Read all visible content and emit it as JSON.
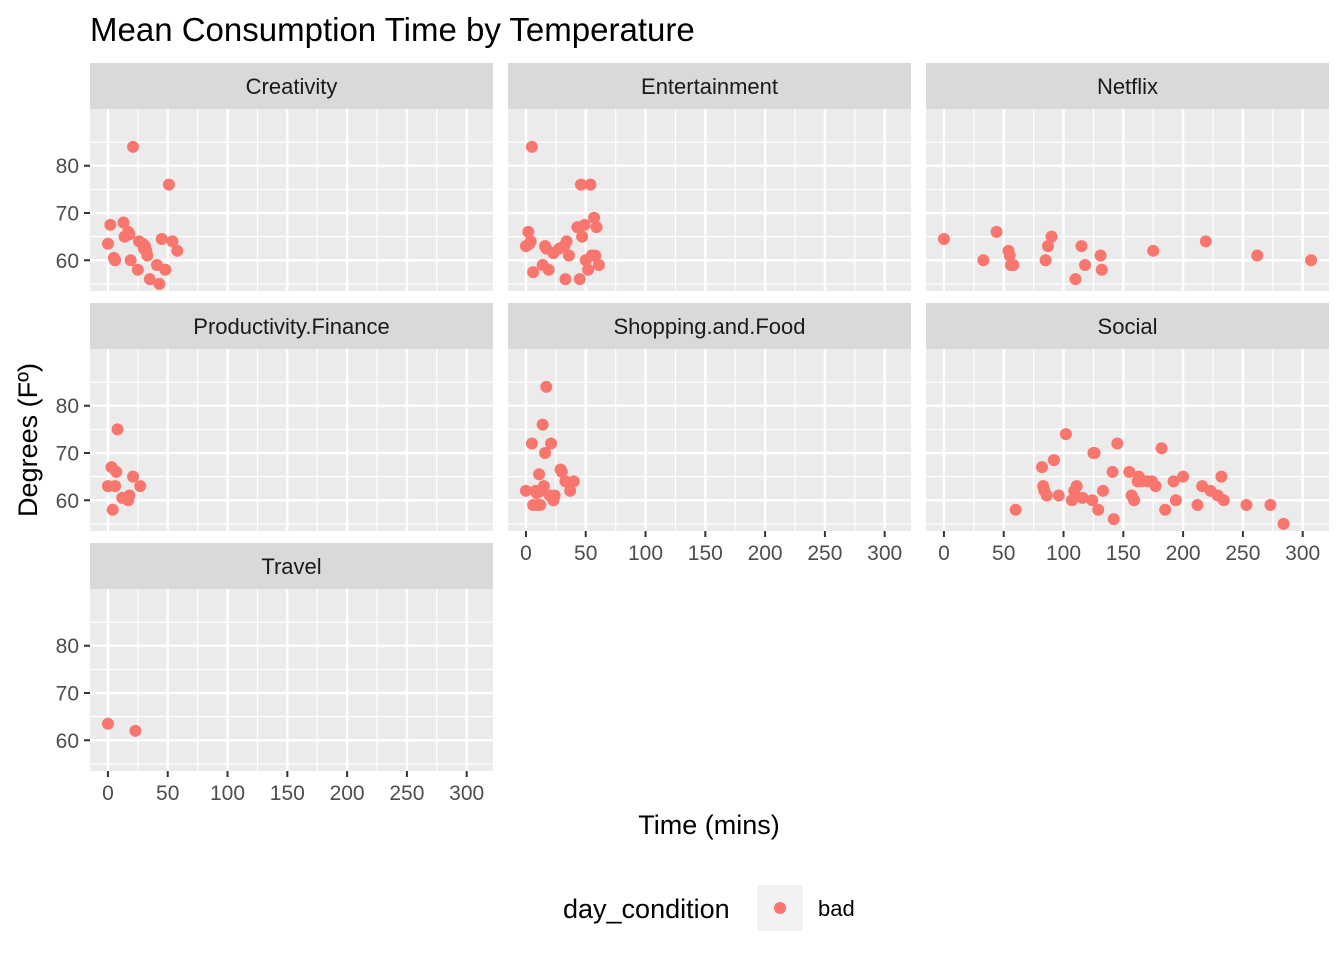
{
  "chart_data": {
    "type": "scatter",
    "title": "Mean Consumption Time by Temperature",
    "xlabel": "Time (mins)",
    "ylabel": "Degrees (Fº)",
    "xlim": [
      -15,
      322
    ],
    "ylim": [
      53.5,
      92
    ],
    "x_ticks": [
      0,
      50,
      100,
      150,
      200,
      250,
      300
    ],
    "y_ticks": [
      60,
      70,
      80
    ],
    "grid": true,
    "legend": {
      "title": "day_condition",
      "position": "bottom",
      "entries": [
        {
          "label": "bad",
          "color": "#F8766D"
        }
      ]
    },
    "point_color": "#F8766D",
    "panels": [
      {
        "name": "Creativity",
        "points": [
          [
            0,
            63.5
          ],
          [
            2,
            67.5
          ],
          [
            5,
            60.5
          ],
          [
            6,
            60
          ],
          [
            13,
            68
          ],
          [
            14,
            65
          ],
          [
            17,
            66
          ],
          [
            18,
            65.5
          ],
          [
            19,
            60
          ],
          [
            21,
            84
          ],
          [
            25,
            58
          ],
          [
            26,
            64
          ],
          [
            29,
            63.5
          ],
          [
            30,
            62.5
          ],
          [
            31,
            63
          ],
          [
            32,
            62
          ],
          [
            33,
            61
          ],
          [
            35,
            56
          ],
          [
            41,
            59
          ],
          [
            43,
            55
          ],
          [
            45,
            64.5
          ],
          [
            48,
            58
          ],
          [
            51,
            76
          ],
          [
            54,
            64
          ],
          [
            58,
            62
          ]
        ]
      },
      {
        "name": "Entertainment",
        "points": [
          [
            0,
            63
          ],
          [
            2,
            66
          ],
          [
            3,
            63.5
          ],
          [
            4,
            64
          ],
          [
            5,
            84
          ],
          [
            6,
            57.5
          ],
          [
            14,
            59
          ],
          [
            16,
            63
          ],
          [
            17,
            62.5
          ],
          [
            19,
            58
          ],
          [
            23,
            61.5
          ],
          [
            28,
            62.5
          ],
          [
            32,
            63
          ],
          [
            33,
            56
          ],
          [
            34,
            64
          ],
          [
            36,
            61
          ],
          [
            43,
            67
          ],
          [
            45,
            56
          ],
          [
            46,
            76
          ],
          [
            47,
            65
          ],
          [
            49,
            67.5
          ],
          [
            50,
            60
          ],
          [
            52,
            58
          ],
          [
            54,
            76
          ],
          [
            55,
            61
          ],
          [
            57,
            69
          ],
          [
            58,
            61
          ],
          [
            59,
            67
          ],
          [
            61,
            59
          ]
        ]
      },
      {
        "name": "Netflix",
        "points": [
          [
            0,
            64.5
          ],
          [
            33,
            60
          ],
          [
            44,
            66
          ],
          [
            54,
            62
          ],
          [
            55,
            61
          ],
          [
            56,
            59
          ],
          [
            58,
            59
          ],
          [
            85,
            60
          ],
          [
            87,
            63
          ],
          [
            90,
            65
          ],
          [
            110,
            56
          ],
          [
            115,
            63
          ],
          [
            118,
            59
          ],
          [
            131,
            61
          ],
          [
            132,
            58
          ],
          [
            175,
            62
          ],
          [
            219,
            64
          ],
          [
            262,
            61
          ],
          [
            307,
            60
          ]
        ]
      },
      {
        "name": "Productivity.Finance",
        "points": [
          [
            0,
            63
          ],
          [
            3,
            67
          ],
          [
            4,
            58
          ],
          [
            6,
            63
          ],
          [
            7,
            66
          ],
          [
            8,
            75
          ],
          [
            12,
            60.5
          ],
          [
            17,
            60
          ],
          [
            18,
            61
          ],
          [
            21,
            65
          ],
          [
            27,
            63
          ]
        ]
      },
      {
        "name": "Shopping.and.Food",
        "points": [
          [
            0,
            62
          ],
          [
            5,
            72
          ],
          [
            6,
            59
          ],
          [
            8,
            62
          ],
          [
            9,
            61.5
          ],
          [
            10,
            59
          ],
          [
            11,
            65.5
          ],
          [
            12,
            59
          ],
          [
            13,
            62
          ],
          [
            14,
            76
          ],
          [
            15,
            63
          ],
          [
            16,
            70
          ],
          [
            17,
            84
          ],
          [
            20,
            61
          ],
          [
            21,
            72
          ],
          [
            23,
            60
          ],
          [
            24,
            61
          ],
          [
            29,
            66.5
          ],
          [
            30,
            66
          ],
          [
            33,
            64
          ],
          [
            37,
            62
          ],
          [
            40,
            64
          ]
        ]
      },
      {
        "name": "Social",
        "points": [
          [
            60,
            58
          ],
          [
            82,
            67
          ],
          [
            83,
            63
          ],
          [
            84,
            62
          ],
          [
            86,
            61
          ],
          [
            92,
            68.5
          ],
          [
            96,
            61
          ],
          [
            102,
            74
          ],
          [
            107,
            60
          ],
          [
            109,
            62
          ],
          [
            111,
            63
          ],
          [
            116,
            60.5
          ],
          [
            124,
            60
          ],
          [
            125,
            70
          ],
          [
            126,
            70
          ],
          [
            129,
            58
          ],
          [
            133,
            62
          ],
          [
            141,
            66
          ],
          [
            142,
            56
          ],
          [
            145,
            72
          ],
          [
            155,
            66
          ],
          [
            157,
            61
          ],
          [
            159,
            60
          ],
          [
            162,
            64
          ],
          [
            163,
            65
          ],
          [
            165,
            64
          ],
          [
            170,
            64
          ],
          [
            174,
            64
          ],
          [
            177,
            63
          ],
          [
            182,
            71
          ],
          [
            185,
            58
          ],
          [
            192,
            64
          ],
          [
            194,
            60
          ],
          [
            200,
            65
          ],
          [
            212,
            59
          ],
          [
            216,
            63
          ],
          [
            223,
            62
          ],
          [
            229,
            61
          ],
          [
            232,
            65
          ],
          [
            234,
            60
          ],
          [
            253,
            59
          ],
          [
            273,
            59
          ],
          [
            284,
            55
          ]
        ]
      },
      {
        "name": "Travel",
        "points": [
          [
            0,
            63.5
          ],
          [
            23,
            62
          ]
        ]
      }
    ]
  }
}
